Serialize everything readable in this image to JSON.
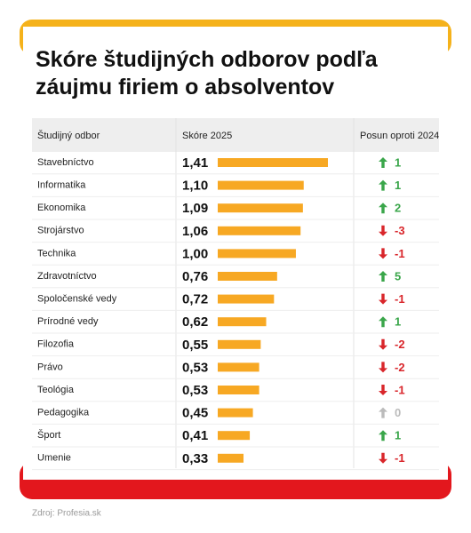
{
  "chart_data": {
    "type": "bar",
    "title": "Skóre študijných odborov podľa záujmu firiem o absolventov",
    "columns": [
      "Študijný odbor",
      "Skóre 2025",
      "Posun oproti 2024"
    ],
    "categories": [
      "Stavebníctvo",
      "Informatika",
      "Ekonomika",
      "Strojárstvo",
      "Technika",
      "Zdravotníctvo",
      "Spoločenské vedy",
      "Prírodné vedy",
      "Filozofia",
      "Právo",
      "Teológia",
      "Pedagogika",
      "Šport",
      "Umenie"
    ],
    "values": [
      1.41,
      1.1,
      1.09,
      1.06,
      1.0,
      0.76,
      0.72,
      0.62,
      0.55,
      0.53,
      0.53,
      0.45,
      0.41,
      0.33
    ],
    "value_labels": [
      "1,41",
      "1,10",
      "1,09",
      "1,06",
      "1,00",
      "0,76",
      "0,72",
      "0,62",
      "0,55",
      "0,53",
      "0,53",
      "0,45",
      "0,41",
      "0,33"
    ],
    "color": "#f7a823",
    "change_values": [
      1,
      1,
      2,
      -3,
      -1,
      5,
      -1,
      1,
      -2,
      -2,
      -1,
      0,
      1,
      -1
    ],
    "up_color": "#3aa64a",
    "down_color": "#d9262b",
    "none_color": "#bbbbbb",
    "source": "Zdroj: Profesia.sk"
  }
}
